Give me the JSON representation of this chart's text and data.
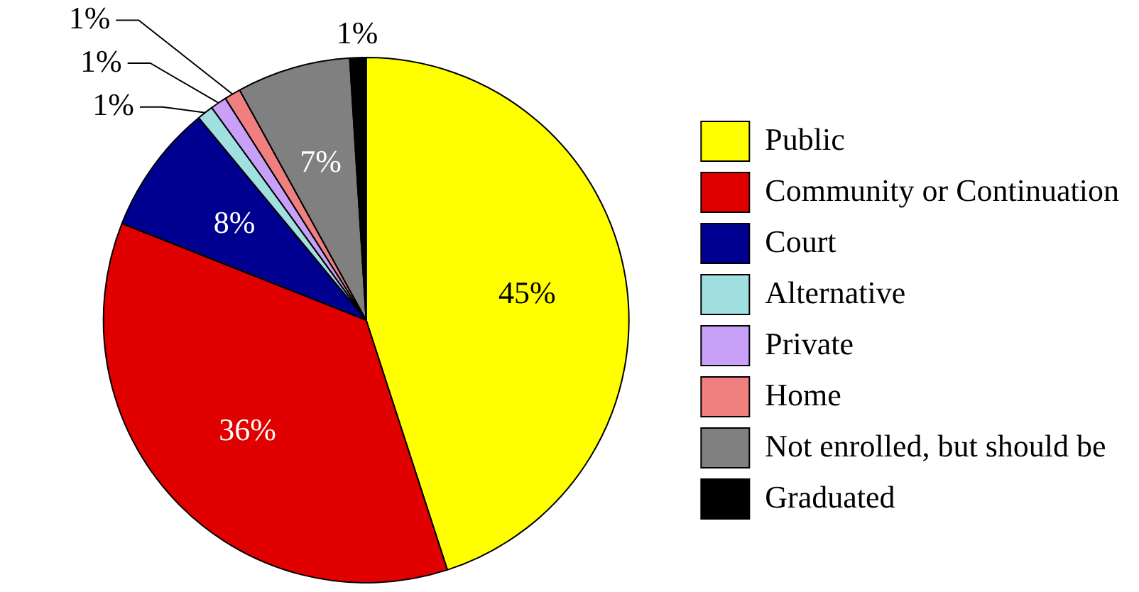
{
  "chart_data": {
    "type": "pie",
    "categories": [
      "Public",
      "Community or Continuation",
      "Court",
      "Alternative",
      "Private",
      "Home",
      "Not enrolled, but should be",
      "Graduated"
    ],
    "values": [
      45,
      36,
      8,
      1,
      1,
      1,
      7,
      1
    ],
    "value_labels": [
      "45%",
      "36%",
      "8%",
      "1%",
      "1%",
      "1%",
      "7%",
      "1%"
    ],
    "colors": [
      "#ffff00",
      "#e00000",
      "#000090",
      "#a0e0e0",
      "#c8a0f8",
      "#f08080",
      "#808080",
      "#000000"
    ],
    "legend": "right"
  }
}
